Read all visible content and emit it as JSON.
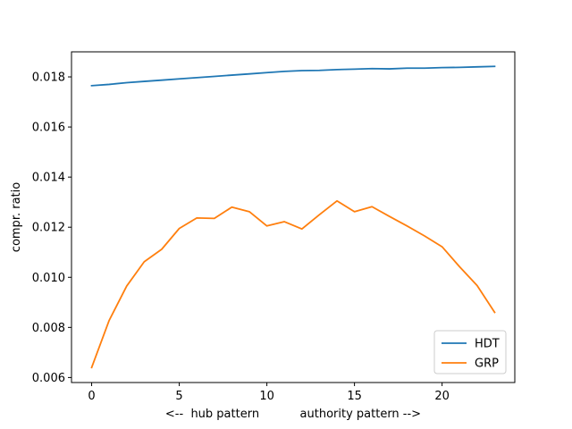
{
  "chart_data": {
    "type": "line",
    "xlabel": "<--  hub pattern           authority pattern -->",
    "ylabel": "compr. ratio",
    "xlim": [
      -1.15,
      24.15
    ],
    "ylim": [
      0.0058,
      0.019
    ],
    "xticks": [
      0,
      5,
      10,
      15,
      20
    ],
    "yticks": [
      0.006,
      0.008,
      0.01,
      0.012,
      0.014,
      0.016,
      0.018
    ],
    "ytick_labels": [
      "0.006",
      "0.008",
      "0.010",
      "0.012",
      "0.014",
      "0.016",
      "0.018"
    ],
    "grid": false,
    "legend_position": "lower-right",
    "x": [
      0,
      1,
      2,
      3,
      4,
      5,
      6,
      7,
      8,
      9,
      10,
      11,
      12,
      13,
      14,
      15,
      16,
      17,
      18,
      19,
      20,
      21,
      22,
      23
    ],
    "series": [
      {
        "name": "HDT",
        "color": "#1f77b4",
        "values": [
          0.01765,
          0.0177,
          0.01777,
          0.01782,
          0.01787,
          0.01792,
          0.01797,
          0.01802,
          0.01807,
          0.01812,
          0.01817,
          0.01822,
          0.01825,
          0.01826,
          0.01829,
          0.01831,
          0.01833,
          0.01832,
          0.01835,
          0.01835,
          0.01837,
          0.01838,
          0.0184,
          0.01842
        ]
      },
      {
        "name": "GRP",
        "color": "#ff7f0e",
        "values": [
          0.0064,
          0.00828,
          0.00965,
          0.01062,
          0.01112,
          0.01195,
          0.01237,
          0.01235,
          0.0128,
          0.01262,
          0.01205,
          0.01222,
          0.01193,
          0.0125,
          0.01305,
          0.01262,
          0.01282,
          0.01243,
          0.01205,
          0.01165,
          0.01122,
          0.01042,
          0.00967,
          0.0086
        ]
      }
    ]
  }
}
